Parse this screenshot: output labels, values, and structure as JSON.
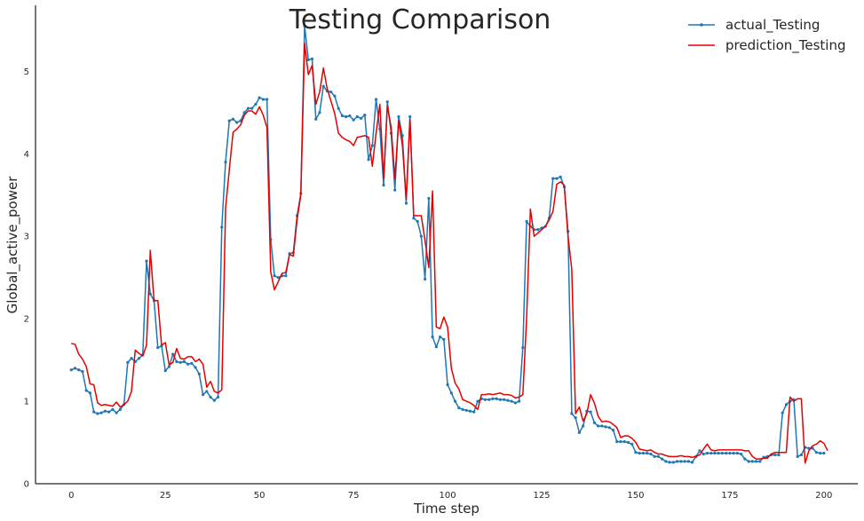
{
  "chart_data": {
    "type": "line",
    "title": "Testing Comparison",
    "xlabel": "Time step",
    "ylabel": "Global_active_power",
    "xlim": [
      -9.5,
      209
    ],
    "ylim": [
      0,
      5.8
    ],
    "grid": false,
    "legend_position": "top-right",
    "x_ticks": [
      0,
      25,
      50,
      75,
      100,
      125,
      150,
      175,
      200
    ],
    "y_ticks": [
      0,
      1,
      2,
      3,
      4,
      5
    ],
    "series": [
      {
        "name": "actual_Testing",
        "color": "#1f77b4",
        "marker": "dot",
        "values": [
          1.38,
          1.4,
          1.38,
          1.36,
          1.13,
          1.1,
          0.87,
          0.85,
          0.86,
          0.88,
          0.87,
          0.9,
          0.86,
          0.9,
          0.96,
          1.47,
          1.52,
          1.48,
          1.52,
          1.56,
          2.7,
          2.3,
          2.22,
          1.65,
          1.67,
          1.37,
          1.42,
          1.57,
          1.48,
          1.47,
          1.48,
          1.45,
          1.46,
          1.41,
          1.33,
          1.08,
          1.12,
          1.05,
          1.01,
          1.05,
          3.11,
          3.9,
          4.4,
          4.42,
          4.38,
          4.4,
          4.5,
          4.55,
          4.55,
          4.6,
          4.68,
          4.66,
          4.66,
          2.96,
          2.52,
          2.5,
          2.52,
          2.52,
          2.79,
          2.8,
          3.25,
          3.52,
          5.55,
          5.14,
          5.15,
          4.42,
          4.5,
          4.82,
          4.76,
          4.75,
          4.7,
          4.55,
          4.46,
          4.45,
          4.46,
          4.41,
          4.45,
          4.43,
          4.47,
          3.93,
          4.1,
          4.66,
          4.3,
          3.62,
          4.63,
          4.25,
          3.56,
          4.45,
          4.22,
          3.4,
          4.45,
          3.22,
          3.18,
          3.0,
          2.48,
          3.46,
          1.78,
          1.66,
          1.78,
          1.75,
          1.2,
          1.1,
          1.0,
          0.92,
          0.9,
          0.89,
          0.88,
          0.87,
          1.0,
          1.03,
          1.02,
          1.02,
          1.03,
          1.03,
          1.02,
          1.02,
          1.01,
          1.0,
          0.98,
          1.0,
          1.65,
          3.18,
          3.12,
          3.08,
          3.08,
          3.1,
          3.12,
          3.22,
          3.7,
          3.7,
          3.72,
          3.6,
          3.06,
          0.85,
          0.8,
          0.62,
          0.7,
          0.88,
          0.87,
          0.74,
          0.7,
          0.7,
          0.69,
          0.68,
          0.65,
          0.51,
          0.51,
          0.51,
          0.5,
          0.48,
          0.38,
          0.37,
          0.37,
          0.37,
          0.36,
          0.33,
          0.33,
          0.3,
          0.27,
          0.26,
          0.26,
          0.27,
          0.27,
          0.27,
          0.27,
          0.26,
          0.33,
          0.4,
          0.36,
          0.37,
          0.37,
          0.37,
          0.37,
          0.37,
          0.37,
          0.37,
          0.37,
          0.37,
          0.36,
          0.3,
          0.27,
          0.27,
          0.27,
          0.27,
          0.32,
          0.33,
          0.35,
          0.35,
          0.35,
          0.86,
          0.96,
          1.0,
          1.02,
          0.33,
          0.35,
          0.44,
          0.43,
          0.43,
          0.38,
          0.37,
          0.37
        ]
      },
      {
        "name": "prediction_Testing",
        "color": "#e60000",
        "marker": "none",
        "values": [
          1.7,
          1.69,
          1.57,
          1.51,
          1.42,
          1.21,
          1.2,
          0.98,
          0.95,
          0.96,
          0.95,
          0.94,
          0.99,
          0.93,
          0.96,
          1.0,
          1.12,
          1.62,
          1.58,
          1.55,
          1.68,
          2.83,
          2.22,
          2.22,
          1.68,
          1.71,
          1.44,
          1.47,
          1.64,
          1.52,
          1.51,
          1.54,
          1.54,
          1.48,
          1.51,
          1.45,
          1.17,
          1.24,
          1.12,
          1.1,
          1.14,
          3.34,
          3.81,
          4.26,
          4.3,
          4.35,
          4.47,
          4.52,
          4.52,
          4.48,
          4.57,
          4.47,
          4.32,
          2.57,
          2.35,
          2.45,
          2.55,
          2.56,
          2.78,
          2.76,
          3.2,
          3.5,
          5.34,
          4.96,
          5.07,
          4.6,
          4.75,
          5.04,
          4.79,
          4.64,
          4.49,
          4.25,
          4.2,
          4.17,
          4.15,
          4.1,
          4.2,
          4.21,
          4.22,
          4.2,
          3.85,
          4.25,
          4.6,
          3.7,
          4.58,
          4.32,
          3.7,
          4.4,
          4.1,
          3.45,
          4.42,
          3.25,
          3.25,
          3.25,
          2.95,
          2.62,
          3.55,
          1.9,
          1.88,
          2.02,
          1.9,
          1.4,
          1.22,
          1.15,
          1.02,
          1.0,
          0.98,
          0.95,
          0.9,
          1.08,
          1.08,
          1.09,
          1.08,
          1.09,
          1.1,
          1.08,
          1.08,
          1.07,
          1.04,
          1.05,
          1.08,
          2.01,
          3.33,
          3.0,
          3.04,
          3.08,
          3.12,
          3.2,
          3.3,
          3.63,
          3.66,
          3.62,
          3.0,
          2.6,
          0.85,
          0.93,
          0.76,
          0.85,
          1.08,
          0.98,
          0.82,
          0.75,
          0.76,
          0.75,
          0.72,
          0.68,
          0.56,
          0.58,
          0.58,
          0.55,
          0.5,
          0.42,
          0.41,
          0.4,
          0.41,
          0.38,
          0.36,
          0.36,
          0.34,
          0.33,
          0.33,
          0.33,
          0.34,
          0.33,
          0.33,
          0.32,
          0.33,
          0.35,
          0.42,
          0.48,
          0.41,
          0.4,
          0.41,
          0.41,
          0.41,
          0.41,
          0.41,
          0.41,
          0.41,
          0.4,
          0.4,
          0.33,
          0.3,
          0.3,
          0.31,
          0.31,
          0.36,
          0.38,
          0.38,
          0.38,
          0.38,
          1.05,
          1.0,
          1.03,
          1.03,
          0.25,
          0.4,
          0.46,
          0.48,
          0.52,
          0.49,
          0.4
        ]
      }
    ]
  }
}
